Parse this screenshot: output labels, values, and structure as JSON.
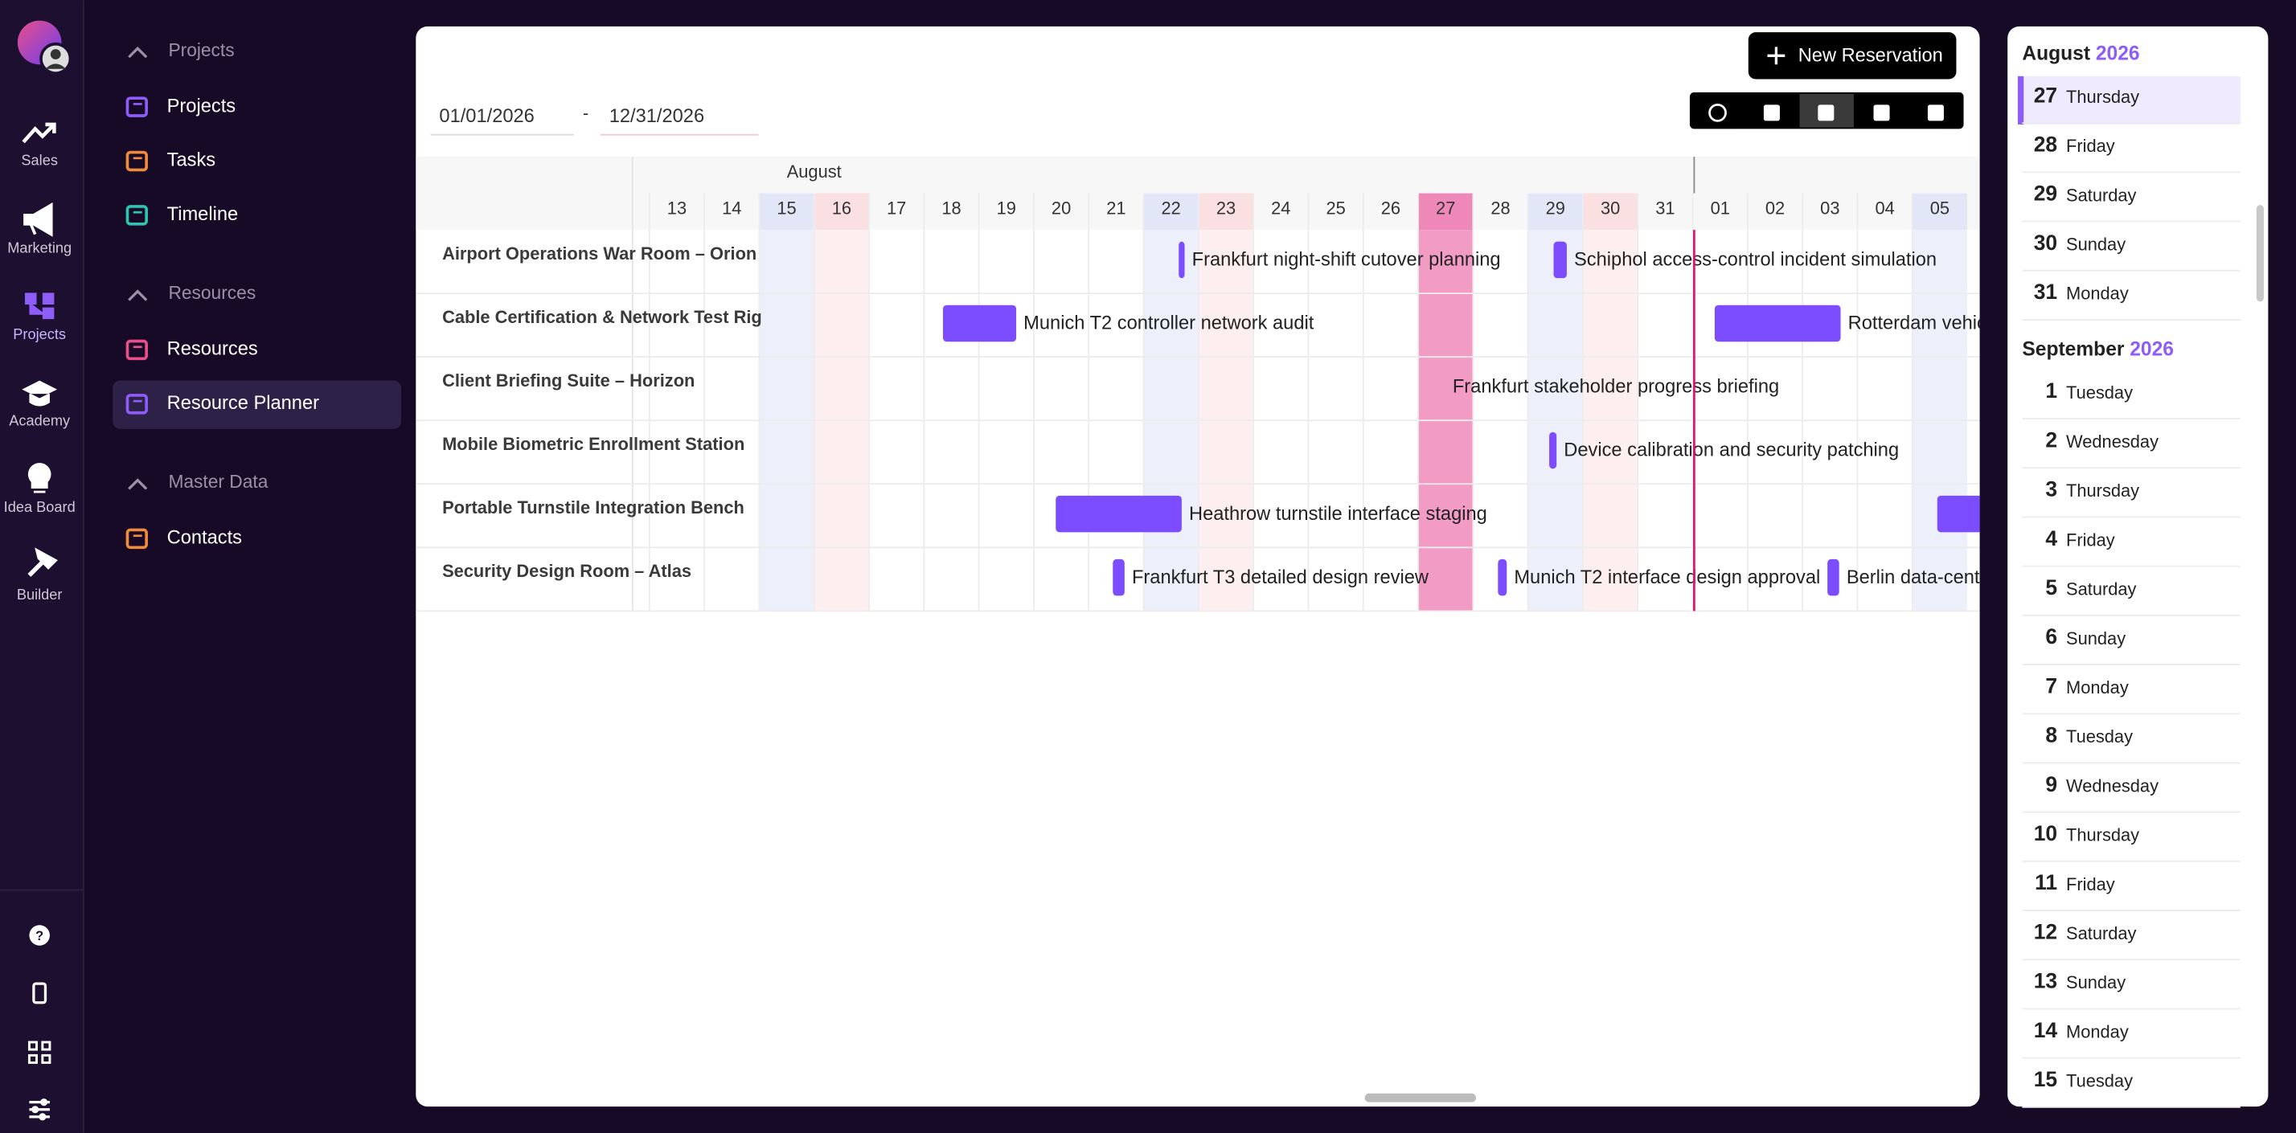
{
  "rail": {
    "items": [
      "Sales",
      "Marketing",
      "Projects",
      "Academy",
      "Idea Board",
      "Builder"
    ]
  },
  "nav": {
    "groups": [
      {
        "title": "Projects",
        "items": [
          {
            "label": "Projects"
          },
          {
            "label": "Tasks"
          },
          {
            "label": "Timeline"
          }
        ]
      },
      {
        "title": "Resources",
        "items": [
          {
            "label": "Resources"
          },
          {
            "label": "Resource Planner",
            "selected": true
          }
        ]
      },
      {
        "title": "Master Data",
        "items": [
          {
            "label": "Contacts"
          }
        ]
      }
    ]
  },
  "toolbar": {
    "new_button": "New Reservation",
    "date_from": "01/01/2026",
    "date_sep": "-",
    "date_to": "12/31/2026"
  },
  "planner": {
    "month": "August",
    "days": [
      "13",
      "14",
      "15",
      "16",
      "17",
      "18",
      "19",
      "20",
      "21",
      "22",
      "23",
      "24",
      "25",
      "26",
      "27",
      "28",
      "29",
      "30",
      "31",
      "01",
      "02",
      "03",
      "04",
      "05"
    ],
    "resources": [
      {
        "name": "Airport Operations War Room – Orion",
        "bookings": [
          "Frankfurt night-shift cutover planning",
          "Schiphol access-control incident simulation"
        ]
      },
      {
        "name": "Cable Certification & Network Test Rig",
        "bookings": [
          "Munich T2 controller network audit",
          "Rotterdam vehic"
        ]
      },
      {
        "name": "Client Briefing Suite – Horizon",
        "bookings": [
          "Frankfurt stakeholder progress briefing"
        ]
      },
      {
        "name": "Mobile Biometric Enrollment Station",
        "bookings": [
          "Device calibration and security patching"
        ]
      },
      {
        "name": "Portable Turnstile Integration Bench",
        "bookings": [
          "Heathrow turnstile interface staging"
        ]
      },
      {
        "name": "Security Design Room – Atlas",
        "bookings": [
          "Frankfurt T3 detailed design review",
          "Munich T2 interface design approval",
          "Berlin data-cent"
        ]
      }
    ]
  },
  "agenda": {
    "groups": [
      {
        "month": "August",
        "year": "2026",
        "days": [
          {
            "day": 27,
            "weekday": "Thursday",
            "selected": true
          },
          {
            "day": 28,
            "weekday": "Friday"
          },
          {
            "day": 29,
            "weekday": "Saturday"
          },
          {
            "day": 30,
            "weekday": "Sunday"
          },
          {
            "day": 31,
            "weekday": "Monday"
          }
        ]
      },
      {
        "month": "September",
        "year": "2026",
        "days": [
          {
            "day": 1,
            "weekday": "Tuesday"
          },
          {
            "day": 2,
            "weekday": "Wednesday"
          },
          {
            "day": 3,
            "weekday": "Thursday"
          },
          {
            "day": 4,
            "weekday": "Friday"
          },
          {
            "day": 5,
            "weekday": "Saturday"
          },
          {
            "day": 6,
            "weekday": "Sunday"
          },
          {
            "day": 7,
            "weekday": "Monday"
          },
          {
            "day": 8,
            "weekday": "Tuesday"
          },
          {
            "day": 9,
            "weekday": "Wednesday"
          },
          {
            "day": 10,
            "weekday": "Thursday"
          },
          {
            "day": 11,
            "weekday": "Friday"
          },
          {
            "day": 12,
            "weekday": "Saturday"
          },
          {
            "day": 13,
            "weekday": "Sunday"
          },
          {
            "day": 14,
            "weekday": "Monday"
          },
          {
            "day": 15,
            "weekday": "Tuesday"
          }
        ]
      }
    ]
  }
}
